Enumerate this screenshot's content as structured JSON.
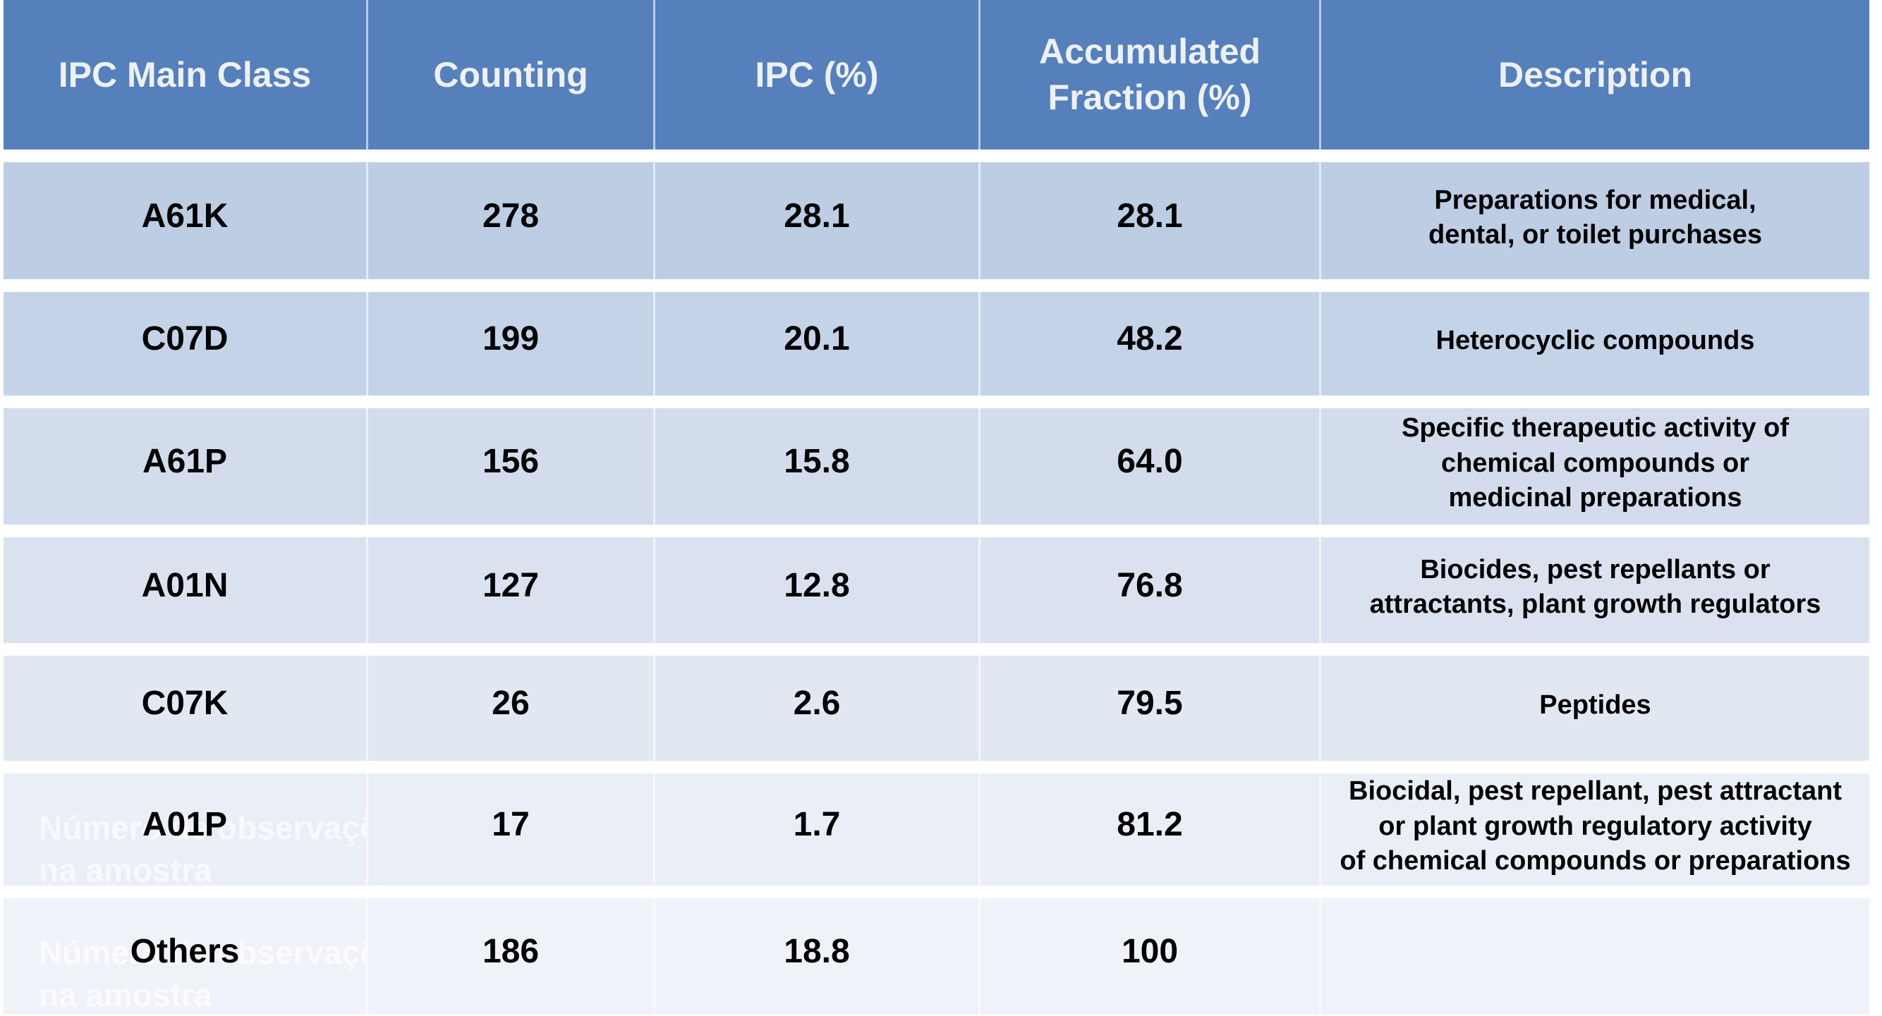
{
  "table": {
    "columns": [
      "IPC Main Class",
      "Counting",
      "IPC (%)",
      "Accumulated\nFraction (%)",
      "Description"
    ],
    "rows": [
      {
        "ipc_class": "A61K",
        "counting": "278",
        "ipc_pct": "28.1",
        "accumulated_pct": "28.1",
        "description": "Preparations for medical,\ndental, or toilet purchases"
      },
      {
        "ipc_class": "C07D",
        "counting": "199",
        "ipc_pct": "20.1",
        "accumulated_pct": "48.2",
        "description": "Heterocyclic compounds"
      },
      {
        "ipc_class": "A61P",
        "counting": "156",
        "ipc_pct": "15.8",
        "accumulated_pct": "64.0",
        "description": "Specific therapeutic activity of\nchemical compounds or\nmedicinal preparations"
      },
      {
        "ipc_class": "A01N",
        "counting": "127",
        "ipc_pct": "12.8",
        "accumulated_pct": "76.8",
        "description": "Biocides, pest repellants or\nattractants, plant growth regulators"
      },
      {
        "ipc_class": "C07K",
        "counting": "26",
        "ipc_pct": "2.6",
        "accumulated_pct": "79.5",
        "description": "Peptides"
      },
      {
        "ipc_class": "A01P",
        "counting": "17",
        "ipc_pct": "1.7",
        "accumulated_pct": "81.2",
        "description": "Biocidal, pest repellant, pest attractant\nor plant growth regulatory activity\nof chemical compounds or preparations"
      },
      {
        "ipc_class": "Others",
        "counting": "186",
        "ipc_pct": "18.8",
        "accumulated_pct": "100",
        "description": ""
      }
    ],
    "watermark": "Número de observações\nna amostra",
    "colors": {
      "header_bg": "#5680BC",
      "header_text": "#EDF0F4",
      "row_backgrounds": [
        "#BCCDE4",
        "#C4D3E8",
        "#D2DCEC",
        "#DAE2F0",
        "#E2E8F2",
        "#EAEEF6",
        "#EFF2F8"
      ],
      "body_text": "#000000",
      "watermark_text": "rgba(255,255,255,0.65)"
    }
  },
  "chart_data": {
    "type": "table",
    "title": "",
    "columns": [
      "IPC Main Class",
      "Counting",
      "IPC (%)",
      "Accumulated Fraction (%)",
      "Description"
    ],
    "rows": [
      [
        "A61K",
        278,
        28.1,
        28.1,
        "Preparations for medical, dental, or toilet purchases"
      ],
      [
        "C07D",
        199,
        20.1,
        48.2,
        "Heterocyclic compounds"
      ],
      [
        "A61P",
        156,
        15.8,
        64.0,
        "Specific therapeutic activity of chemical compounds or medicinal preparations"
      ],
      [
        "A01N",
        127,
        12.8,
        76.8,
        "Biocides, pest repellants or attractants, plant growth regulators"
      ],
      [
        "C07K",
        26,
        2.6,
        79.5,
        "Peptides"
      ],
      [
        "A01P",
        17,
        1.7,
        81.2,
        "Biocidal, pest repellant, pest attractant or plant growth regulatory activity of chemical compounds or preparations"
      ],
      [
        "Others",
        186,
        18.8,
        100,
        ""
      ]
    ],
    "annotations": [
      "Número de observações na amostra"
    ]
  }
}
